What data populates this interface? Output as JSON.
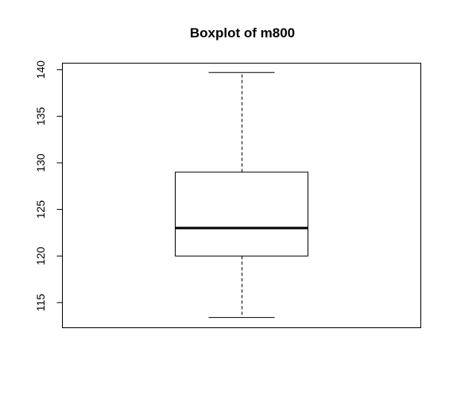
{
  "chart_data": {
    "type": "boxplot",
    "title": "Boxplot of m800",
    "xlabel": "",
    "ylabel": "",
    "ylim": [
      112.3,
      140.7
    ],
    "yticks": [
      115,
      120,
      125,
      130,
      135,
      140
    ],
    "box": {
      "whisker_low": 113.4,
      "q1": 120.0,
      "median": 123.0,
      "q3": 129.0,
      "whisker_high": 139.7
    },
    "colors": {
      "box_fill": "#ffffff",
      "line": "#000000"
    }
  }
}
